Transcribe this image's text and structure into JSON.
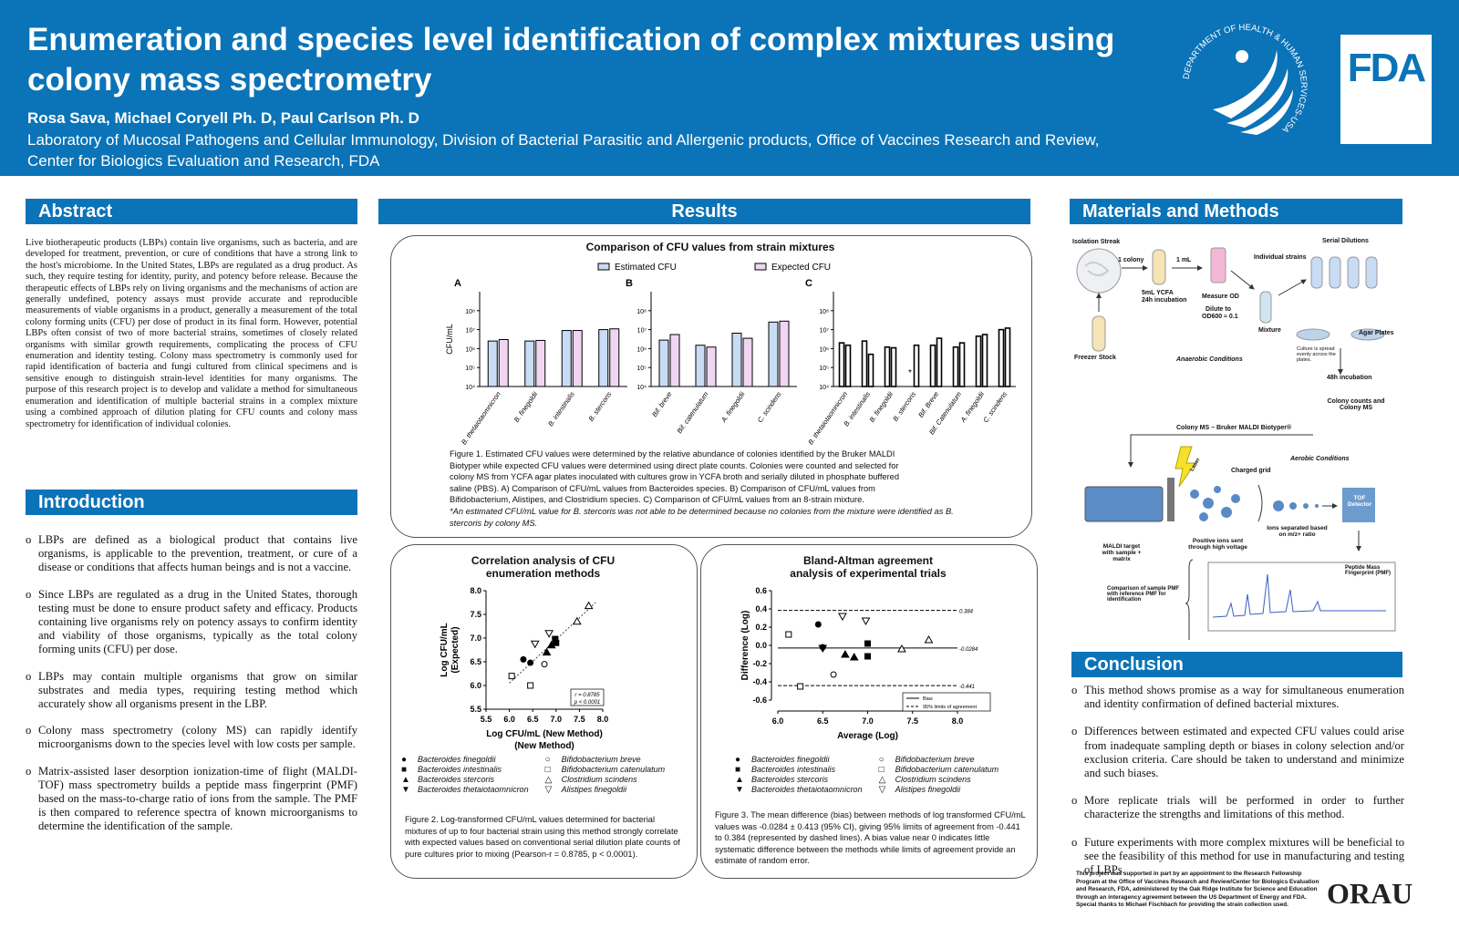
{
  "header": {
    "title": "Enumeration and species level identification of complex mixtures using colony mass spectrometry",
    "authors": "Rosa Sava, Michael Coryell Ph. D, Paul Carlson Ph. D",
    "affiliation": "Laboratory of Mucosal Pathogens and Cellular Immunology, Division of Bacterial Parasitic and Allergenic products, Office of Vaccines Research and Review, Center for Biologics Evaluation and Research, FDA",
    "hhs_seal_text": "DEPARTMENT OF HEALTH & HUMAN SERVICES-USA",
    "fda_logo": "FDA"
  },
  "abstract": {
    "heading": "Abstract",
    "text": "Live biotherapeutic products (LBPs) contain live organisms, such as bacteria, and are developed for treatment, prevention, or cure of conditions that have a strong link to the host's microbiome. In the United States, LBPs are regulated as a drug product. As such, they require testing for identity, purity, and potency before release. Because the therapeutic effects of LBPs rely on living organisms and the mechanisms of action are generally undefined, potency assays must provide accurate and reproducible measurements of viable organisms in a product, generally a measurement of the total colony forming units (CFU) per dose of product in its final form. However, potential LBPs often consist of two of more bacterial strains, sometimes of closely related organisms with similar growth requirements, complicating the process of CFU enumeration and identity testing. Colony mass spectrometry is commonly used for rapid identification of bacteria and fungi cultured from clinical specimens and is sensitive enough to distinguish strain-level identities for many organisms. The purpose of this research project is to develop and validate a method for simultaneous enumeration and identification of multiple bacterial strains in a complex mixture using a combined approach of dilution plating for CFU counts and colony mass spectrometry for identification of individual colonies."
  },
  "introduction": {
    "heading": "Introduction",
    "bullet": "o",
    "items": [
      "LBPs are defined as a biological product that contains live organisms, is applicable to the prevention, treatment, or cure of a disease or conditions that affects human beings and is not a vaccine.",
      "Since LBPs are regulated as a drug in the United States, thorough testing must be done to ensure product safety and efficacy. Products containing live organisms rely on potency assays to confirm identity and viability of those organisms, typically as the total colony forming units (CFU) per dose.",
      "LBPs may contain multiple organisms that grow on similar substrates and media types, requiring testing method which accurately show all organisms present in the LBP.",
      "Colony mass spectrometry (colony MS) can rapidly identify microorganisms down to the species level with low costs per sample.",
      "Matrix-assisted laser desorption ionization-time of flight (MALDI-TOF) mass spectrometry builds a peptide mass fingerprint (PMF) based on the mass-to-charge ratio of ions from the sample. The PMF is then compared to reference spectra of known microorganisms to determine the identification of the sample."
    ]
  },
  "results": {
    "heading": "Results",
    "fig1": {
      "title": "Comparison of CFU values from strain mixtures",
      "legend_estimated": "Estimated CFU",
      "legend_expected": "Expected CFU",
      "asterisk": "*",
      "caption_lines": [
        "Figure 1.  Estimated CFU values were determined by the relative abundance of colonies identified by the Bruker MALDI",
        "Biotyper while expected CFU values were determined using direct plate counts. Colonies were counted and selected for",
        "colony MS from YCFA agar plates inoculated with cultures grow in YCFA broth and serially diluted in phosphate buffered",
        "saline (PBS).  A) Comparison of CFU/mL values from Bacteroides species. B) Comparison of CFU/mL values from",
        "Bifidobacterium, Alistipes, and Clostridium species. C) Comparison of CFU/mL values from an 8-strain mixture.",
        "*An estimated CFU/mL value for B. stercoris was not able to be determined because no colonies from the mixture were identified as B.",
        "stercoris by colony MS."
      ]
    },
    "fig2": {
      "title_line1": "Correlation analysis of CFU",
      "title_line2": "enumeration methods",
      "stats_r": "r = 0.8785",
      "stats_p": "p < 0.0001",
      "caption": "Figure 2. Log-transformed CFU/mL values determined for bacterial mixtures of up to four bacterial strain using this method strongly correlate with expected values based on conventional serial dilution plate counts of pure cultures prior to mixing (Pearson-r = 0.8785, p < 0.0001)."
    },
    "fig3": {
      "title_line1": "Bland-Altman agreement",
      "title_line2": "analysis of experimental trials",
      "legend_bias": "Bias",
      "legend_limits": "95% limits of agreement",
      "caption": "Figure 3. The mean difference (bias) between methods of log transformed CFU/mL values was -0.0284 ± 0.413 (95% CI), giving 95% limits of agreement from -0.441 to 0.384 (represented by dashed lines). A bias value near 0 indicates little systematic difference between the methods while limits of agreement provide an estimate of random error."
    },
    "species_legend": [
      {
        "marker": "●",
        "name": "Bacteroides finegoldii"
      },
      {
        "marker": "○",
        "name": "Bifidobacterium breve"
      },
      {
        "marker": "■",
        "name": "Bacteroides intestinalis"
      },
      {
        "marker": "□",
        "name": "Bifidobacterium catenulatum"
      },
      {
        "marker": "▲",
        "name": "Bacteroides stercoris"
      },
      {
        "marker": "△",
        "name": "Clostridium scindens"
      },
      {
        "marker": "▼",
        "name": "Bacteroides thetaiotaomnicron"
      },
      {
        "marker": "▽",
        "name": "Alistipes finegoldii"
      }
    ]
  },
  "methods": {
    "heading": "Materials and Methods",
    "labels": {
      "isolation": "Isolation Streak",
      "one_colony": "1 colony",
      "one_ml": "1 mL",
      "ycfa": "5mL YCFA",
      "incub": "24h incubation",
      "measure_od": "Measure OD",
      "dilute": "Dilute to",
      "od": "OD600 ≈ 0.1",
      "individual": "Individual strains",
      "serial": "Serial Dilutions",
      "freezer": "Freezer Stock",
      "anaerobic": "Anaerobic Conditions",
      "mixture": "Mixture",
      "agar": "Agar Plates",
      "spread": "Culture is spread evenly across the plates.",
      "incub48": "48h incubation",
      "counts": "Colony counts and Colony MS",
      "colony_ms": "Colony MS – Bruker MALDI Biotyper®",
      "aerobic": "Aerobic Conditions",
      "laser": "Laser",
      "grid": "Charged grid",
      "tof": "TOF Detector",
      "target": "MALDI target with sample + matrix",
      "positive": "Positive ions sent through high voltage",
      "separated": "Ions separated based on m/z+ ratio",
      "comparison": "Comparison of sample PMF with reference PMF for identification",
      "pmf": "Peptide Mass Fingerprint (PMF)"
    }
  },
  "conclusion": {
    "heading": "Conclusion",
    "bullet": "o",
    "items": [
      "This method shows promise as a way for simultaneous enumeration and identity confirmation of defined bacterial mixtures.",
      "Differences between estimated and expected CFU values could arise from inadequate sampling depth or biases in colony selection and/or exclusion criteria. Care should be taken to understand and minimize and such biases.",
      "More replicate trials will be performed in order to further characterize the strengths and limitations of this method.",
      "Future experiments with more complex mixtures will be beneficial to see the feasibility of this method for use in manufacturing and testing of LBPs."
    ],
    "acknowledgment": "This project was supported in part by an appointment to the Research Fellowship Program at the Office of Vaccines Research and Review/Center for Biologics Evaluation and Research, FDA, administered by the Oak Ridge Institute for Science and Education through an interagency agreement between the US Department of Energy and FDA. Special thanks to Michael Fischbach for providing the strain collection used.",
    "orau_logo": "ORAU"
  },
  "colors": {
    "header_bg": "#0b73b7",
    "estimated_bar": "#c9dcf5",
    "expected_bar": "#f0d6f3"
  },
  "chart_data": [
    {
      "type": "bar",
      "panel": "A",
      "ylabel": "CFU/mL",
      "yscale": "log",
      "ylim": [
        10000,
        1000000000
      ],
      "yticks": [
        "10⁴",
        "10⁵",
        "10⁶",
        "10⁷",
        "10⁸"
      ],
      "categories": [
        "B. thetaiotaomnicron",
        "B. finegoldii",
        "B. intestinalis",
        "B. stercoris"
      ],
      "series": [
        {
          "name": "Estimated CFU",
          "values": [
            2500000,
            2500000,
            9000000,
            10000000
          ]
        },
        {
          "name": "Expected CFU",
          "values": [
            3000000,
            2700000,
            9000000,
            11000000
          ]
        }
      ]
    },
    {
      "type": "bar",
      "panel": "B",
      "yscale": "log",
      "ylim": [
        10000,
        1000000000
      ],
      "yticks": [
        "10⁴",
        "10⁵",
        "10⁶",
        "10⁷",
        "10⁸"
      ],
      "categories": [
        "Bif. breve",
        "Bif. catenulatum",
        "A. finegoldii",
        "C. scindens"
      ],
      "series": [
        {
          "name": "Estimated CFU",
          "values": [
            2800000,
            1500000,
            6500000,
            25000000
          ]
        },
        {
          "name": "Expected CFU",
          "values": [
            5500000,
            1200000,
            3500000,
            28000000
          ]
        }
      ]
    },
    {
      "type": "bar",
      "panel": "C",
      "yscale": "log",
      "ylim": [
        10000,
        1000000000
      ],
      "yticks": [
        "10⁴",
        "10⁵",
        "10⁶",
        "10⁷",
        "10⁸"
      ],
      "categories": [
        "B. thetaiotaomnicron",
        "B. intestinalis",
        "B. finegoldii",
        "B. stercoris",
        "Bif. Breve",
        "Bif. Catenulatum",
        "A. finegoldii",
        "C. scindens"
      ],
      "series": [
        {
          "name": "Estimated CFU",
          "values": [
            2000000,
            2500000,
            1200000,
            null,
            1500000,
            1200000,
            4500000,
            10000000
          ]
        },
        {
          "name": "Expected CFU",
          "values": [
            1500000,
            500000,
            1100000,
            1500000,
            3500000,
            2000000,
            5500000,
            12000000
          ]
        }
      ]
    },
    {
      "type": "scatter",
      "xlabel": "Log CFU/mL (New Method)",
      "ylabel": "Log CFU/mL (Expected)",
      "xlim": [
        5.5,
        8.0
      ],
      "ylim": [
        5.5,
        8.0
      ],
      "xticks": [
        5.5,
        6.0,
        6.5,
        7.0,
        7.5,
        8.0
      ],
      "yticks": [
        5.5,
        6.0,
        6.5,
        7.0,
        7.5,
        8.0
      ],
      "points": [
        {
          "x": 6.3,
          "y": 6.55,
          "marker": "●"
        },
        {
          "x": 6.45,
          "y": 6.48,
          "marker": "●"
        },
        {
          "x": 6.98,
          "y": 6.98,
          "marker": "■"
        },
        {
          "x": 7.0,
          "y": 6.9,
          "marker": "■"
        },
        {
          "x": 6.8,
          "y": 6.7,
          "marker": "▲"
        },
        {
          "x": 6.9,
          "y": 6.85,
          "marker": "▲"
        },
        {
          "x": 6.55,
          "y": 6.88,
          "marker": "▽"
        },
        {
          "x": 6.85,
          "y": 7.1,
          "marker": "▽"
        },
        {
          "x": 6.75,
          "y": 6.45,
          "marker": "○"
        },
        {
          "x": 6.05,
          "y": 6.2,
          "marker": "□"
        },
        {
          "x": 6.45,
          "y": 6.0,
          "marker": "□"
        },
        {
          "x": 7.45,
          "y": 7.35,
          "marker": "△"
        },
        {
          "x": 7.7,
          "y": 7.68,
          "marker": "△"
        }
      ],
      "fit_line": [
        [
          6.0,
          6.05
        ],
        [
          7.85,
          7.75
        ]
      ]
    },
    {
      "type": "scatter",
      "xlabel": "Average (Log)",
      "ylabel": "Difference (Log)",
      "xlim": [
        6.0,
        8.0
      ],
      "ylim": [
        -0.6,
        0.6
      ],
      "xticks": [
        6.0,
        6.5,
        7.0,
        7.5,
        8.0
      ],
      "yticks": [
        -0.6,
        -0.4,
        -0.2,
        0.0,
        0.2,
        0.4,
        0.6
      ],
      "bias": -0.0284,
      "limits": [
        -0.441,
        0.384
      ],
      "bias_label": "-0.0284",
      "upper_label": "0.384",
      "lower_label": "-0.441",
      "points": [
        {
          "x": 6.45,
          "y": 0.23,
          "marker": "●"
        },
        {
          "x": 6.5,
          "y": -0.02,
          "marker": "●"
        },
        {
          "x": 7.0,
          "y": 0.02,
          "marker": "■"
        },
        {
          "x": 7.0,
          "y": -0.12,
          "marker": "■"
        },
        {
          "x": 6.75,
          "y": -0.1,
          "marker": "▲"
        },
        {
          "x": 6.85,
          "y": -0.13,
          "marker": "▲"
        },
        {
          "x": 6.72,
          "y": 0.32,
          "marker": "▽"
        },
        {
          "x": 6.98,
          "y": 0.27,
          "marker": "▽"
        },
        {
          "x": 6.5,
          "y": -0.03,
          "marker": "▼"
        },
        {
          "x": 6.62,
          "y": -0.32,
          "marker": "○"
        },
        {
          "x": 6.12,
          "y": 0.12,
          "marker": "□"
        },
        {
          "x": 6.25,
          "y": -0.45,
          "marker": "□"
        },
        {
          "x": 7.38,
          "y": -0.04,
          "marker": "△"
        },
        {
          "x": 7.68,
          "y": 0.06,
          "marker": "△"
        }
      ]
    }
  ]
}
